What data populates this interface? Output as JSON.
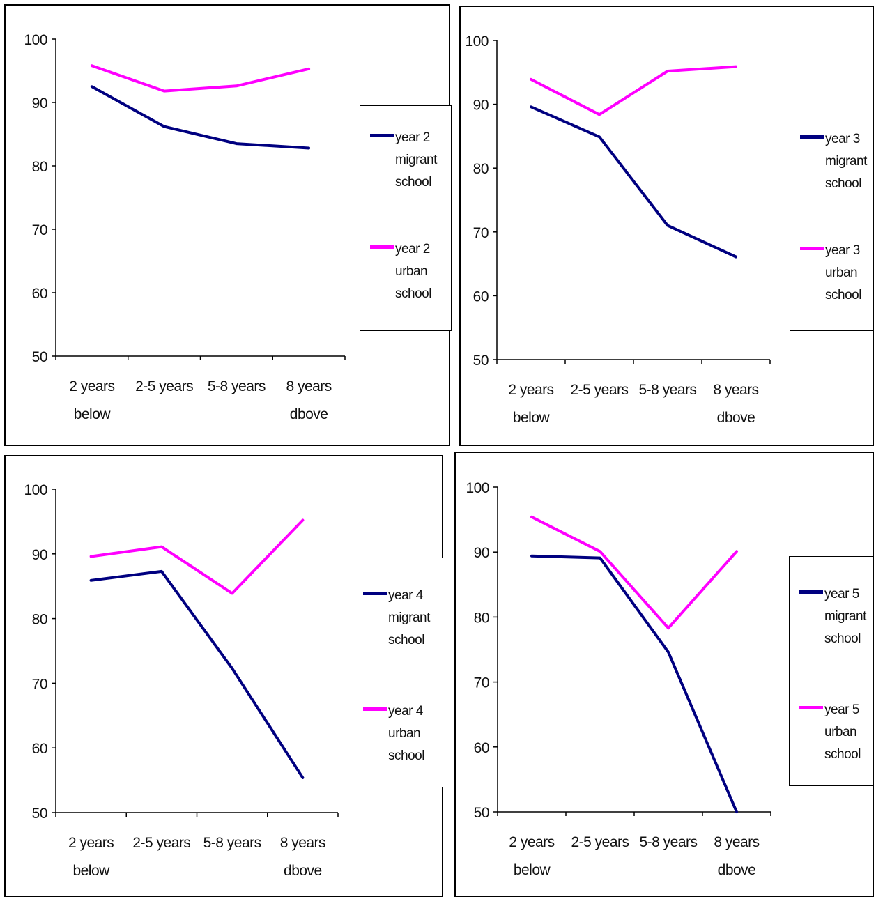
{
  "colors": {
    "migrant": "#000080",
    "urban": "#FF00FF",
    "axis": "#000000"
  },
  "chart_data": [
    {
      "type": "line",
      "categories": [
        "2 years\nbelow",
        "2-5 years",
        "5-8 years",
        "8 years\ndbove"
      ],
      "ylim": [
        50,
        100
      ],
      "yticks": [
        "50",
        "60",
        "70",
        "80",
        "90",
        "100"
      ],
      "series": [
        {
          "name": "year 2\nmigrant\nschool",
          "color": "#000080",
          "values": [
            92.5,
            86.2,
            83.5,
            82.8
          ]
        },
        {
          "name": "year 2\nurban\nschool",
          "color": "#FF00FF",
          "values": [
            95.8,
            91.8,
            92.6,
            95.3
          ]
        }
      ]
    },
    {
      "type": "line",
      "categories": [
        "2 years\nbelow",
        "2-5 years",
        "5-8 years",
        "8 years\ndbove"
      ],
      "ylim": [
        50,
        100
      ],
      "yticks": [
        "50",
        "60",
        "70",
        "80",
        "90",
        "100"
      ],
      "series": [
        {
          "name": "year 3\nmigrant\nschool",
          "color": "#000080",
          "values": [
            89.6,
            84.9,
            71.0,
            66.1
          ]
        },
        {
          "name": "year 3\nurban\nschool",
          "color": "#FF00FF",
          "values": [
            93.9,
            88.4,
            95.2,
            95.9
          ]
        }
      ]
    },
    {
      "type": "line",
      "categories": [
        "2 years\nbelow",
        "2-5 years",
        "5-8 years",
        "8 years\ndbove"
      ],
      "ylim": [
        50,
        100
      ],
      "yticks": [
        "50",
        "60",
        "70",
        "80",
        "90",
        "100"
      ],
      "series": [
        {
          "name": "year 4\nmigrant\nschool",
          "color": "#000080",
          "values": [
            85.9,
            87.3,
            72.3,
            55.4
          ]
        },
        {
          "name": "year 4\nurban\nschool",
          "color": "#FF00FF",
          "values": [
            89.6,
            91.1,
            83.9,
            95.2
          ]
        }
      ]
    },
    {
      "type": "line",
      "categories": [
        "2 years\nbelow",
        "2-5 years",
        "5-8 years",
        "8 years\ndbove"
      ],
      "ylim": [
        50,
        100
      ],
      "yticks": [
        "50",
        "60",
        "70",
        "80",
        "90",
        "100"
      ],
      "series": [
        {
          "name": "year 5\nmigrant\nschool",
          "color": "#000080",
          "values": [
            89.4,
            89.1,
            74.6,
            50.0
          ]
        },
        {
          "name": "year 5\nurban\nschool",
          "color": "#FF00FF",
          "values": [
            95.4,
            90.1,
            78.3,
            90.1
          ]
        }
      ]
    }
  ]
}
